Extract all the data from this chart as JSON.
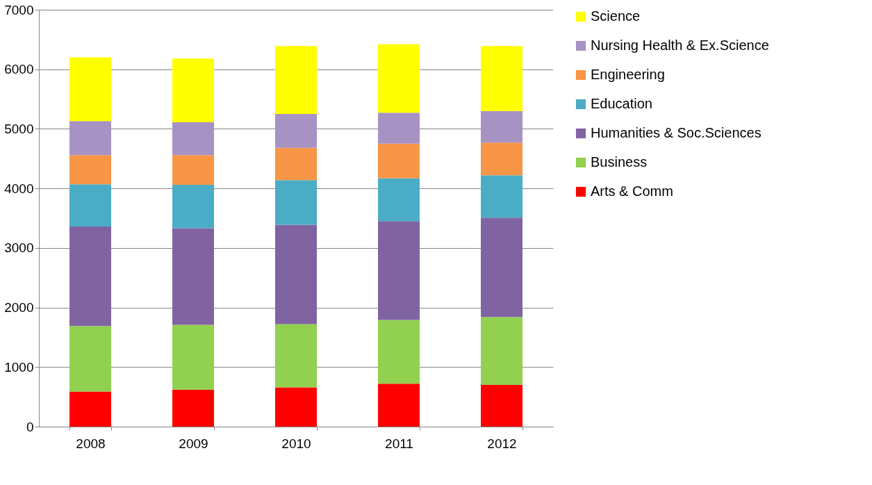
{
  "chart_data": {
    "type": "bar",
    "stacked": true,
    "categories": [
      "2008",
      "2009",
      "2010",
      "2011",
      "2012"
    ],
    "series": [
      {
        "name": "Arts & Comm",
        "color": "#ff0000",
        "values": [
          590,
          620,
          660,
          720,
          700
        ]
      },
      {
        "name": "Business",
        "color": "#92d050",
        "values": [
          1100,
          1090,
          1060,
          1070,
          1140
        ]
      },
      {
        "name": "Humanities & Soc.Sciences",
        "color": "#8064a2",
        "values": [
          1670,
          1620,
          1670,
          1660,
          1670
        ]
      },
      {
        "name": "Education",
        "color": "#4bacc6",
        "values": [
          710,
          730,
          750,
          720,
          710
        ]
      },
      {
        "name": "Engineering",
        "color": "#f79646",
        "values": [
          490,
          500,
          540,
          580,
          550
        ]
      },
      {
        "name": "Nursing Health & Ex.Science",
        "color": "#a792c4",
        "values": [
          570,
          550,
          570,
          520,
          530
        ]
      },
      {
        "name": "Science",
        "color": "#ffff00",
        "values": [
          1070,
          1070,
          1140,
          1150,
          1090
        ]
      }
    ],
    "ylim": [
      0,
      7000
    ],
    "yticks": [
      0,
      1000,
      2000,
      3000,
      4000,
      5000,
      6000,
      7000
    ],
    "grid": "y",
    "legend": "right"
  }
}
